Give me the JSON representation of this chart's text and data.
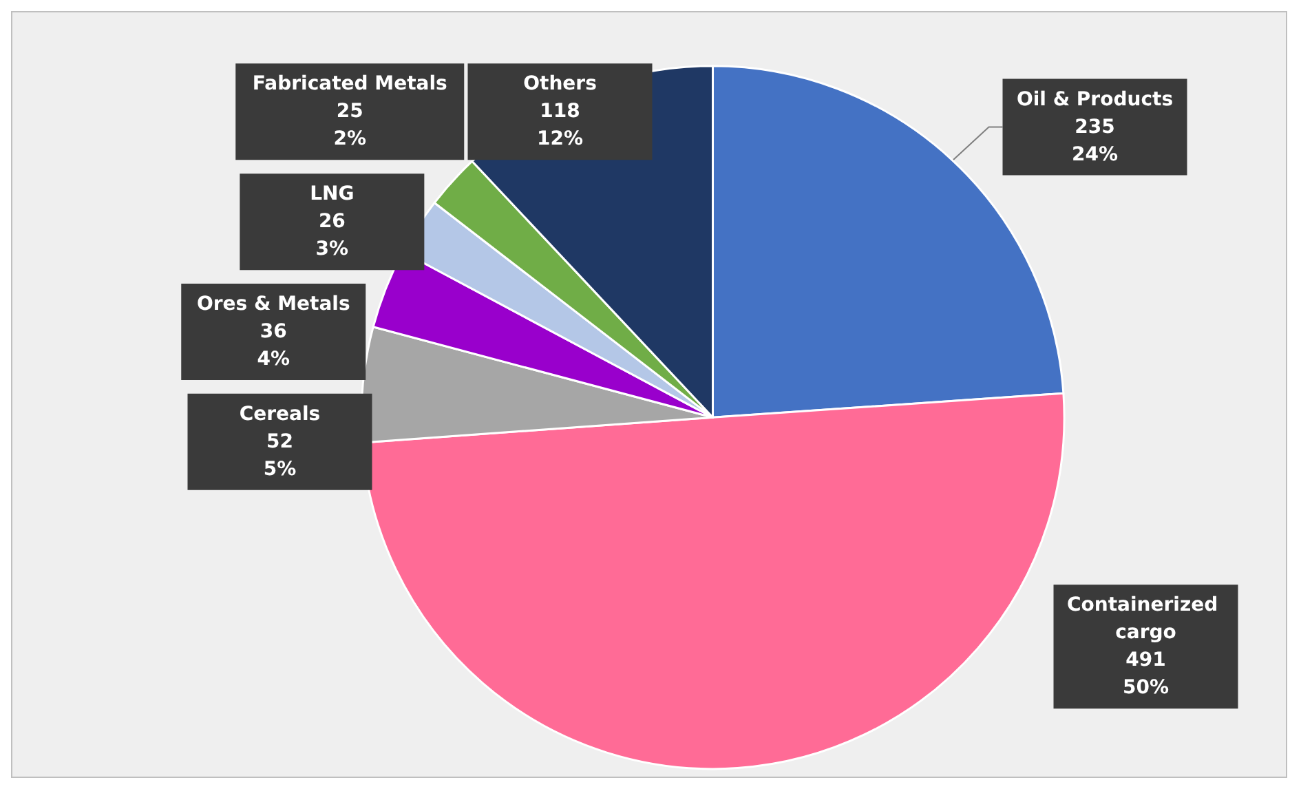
{
  "chart_data": {
    "type": "pie",
    "categories": [
      "Oil & Products",
      "Containerized cargo",
      "Cereals",
      "Ores & Metals",
      "LNG",
      "Fabricated Metals",
      "Others"
    ],
    "values": [
      235,
      491,
      52,
      36,
      26,
      25,
      118
    ],
    "value_labels": [
      "235\n24%",
      "491\n50%",
      "52\n5%",
      "36\n4%",
      "26\n3%",
      "25\n2%",
      "118\n12%"
    ],
    "colors": [
      "#4472c4",
      "#ff6b96",
      "#a6a6a6",
      "#9900cc",
      "#b4c7e7",
      "#70ad47",
      "#1f3864"
    ],
    "legend": false
  }
}
